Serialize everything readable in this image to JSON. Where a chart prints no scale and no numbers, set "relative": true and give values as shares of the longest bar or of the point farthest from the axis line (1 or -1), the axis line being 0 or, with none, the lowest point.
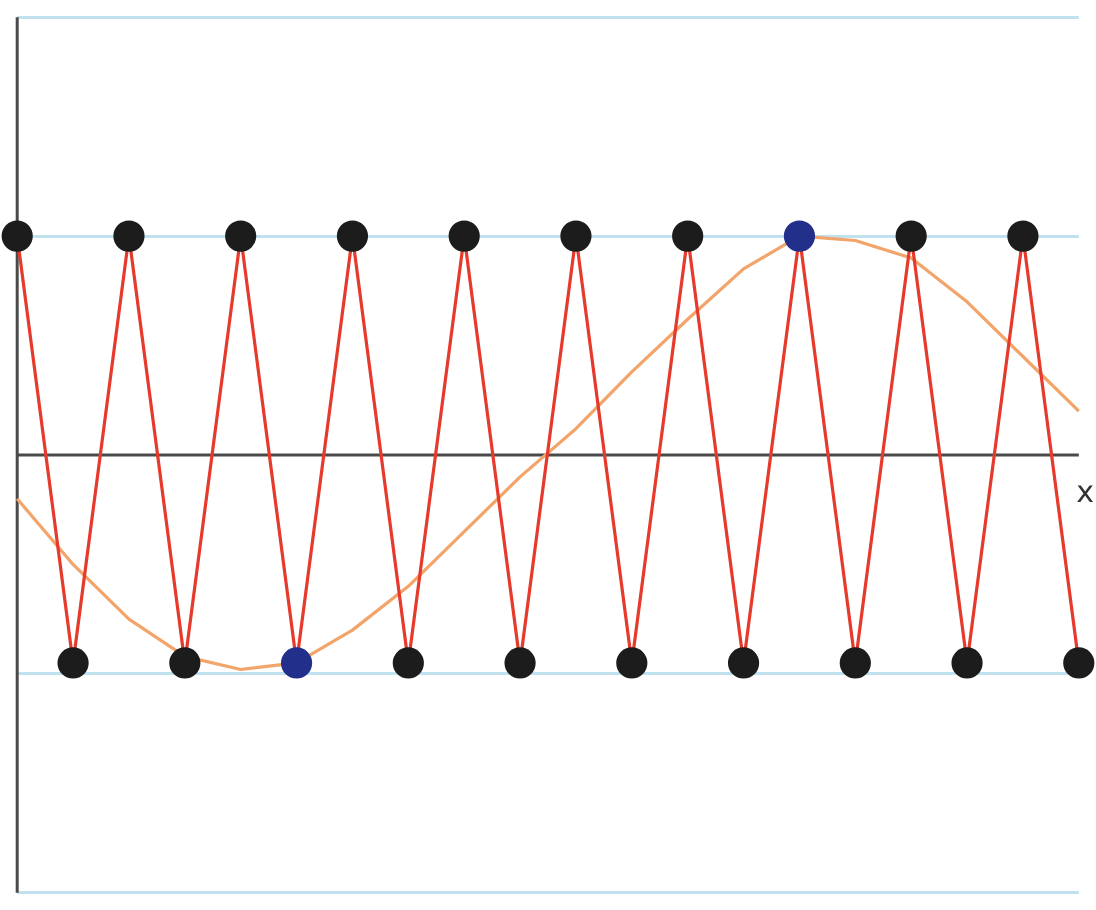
{
  "chart_data": {
    "type": "line",
    "xlabel": "x",
    "relative": true,
    "grid": "y",
    "legend": false,
    "tick_labels": false,
    "categories": [
      null,
      null,
      null,
      null,
      null,
      null,
      null,
      null,
      null,
      null,
      null,
      null,
      null,
      null,
      null,
      null,
      null,
      null,
      null,
      null
    ],
    "series": [
      {
        "color": "#e63a2c",
        "marker": "circle",
        "colors": [
          "#1c1c1c",
          "#1c1c1c",
          "#1c1c1c",
          "#1c1c1c",
          "#1c1c1c",
          "#22308c",
          "#1c1c1c",
          "#1c1c1c",
          "#1c1c1c",
          "#1c1c1c",
          "#1c1c1c",
          "#1c1c1c",
          "#1c1c1c",
          "#1c1c1c",
          "#22308c",
          "#1c1c1c",
          "#1c1c1c",
          "#1c1c1c",
          "#1c1c1c",
          "#1c1c1c"
        ],
        "values": [
          1,
          -0.95,
          1,
          -0.95,
          1,
          -0.95,
          1,
          -0.95,
          1,
          -0.95,
          1,
          -0.95,
          1,
          -0.95,
          1,
          -0.95,
          1,
          -0.95,
          1,
          -0.95
        ]
      },
      {
        "color": "#f2a46a",
        "marker": "none",
        "values": [
          -0.2,
          -0.5,
          -0.75,
          -0.92,
          -0.98,
          -0.95,
          -0.8,
          -0.6,
          -0.35,
          -0.1,
          0.12,
          0.38,
          0.62,
          0.85,
          1,
          0.98,
          0.9,
          0.7,
          0.45,
          0.2
        ]
      }
    ]
  }
}
